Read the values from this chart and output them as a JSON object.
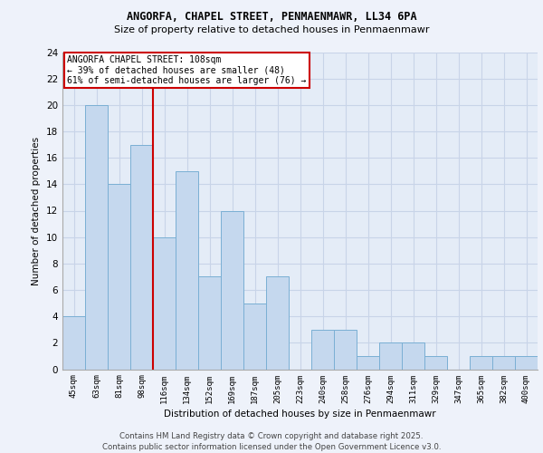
{
  "title_line1": "ANGORFA, CHAPEL STREET, PENMAENMAWR, LL34 6PA",
  "title_line2": "Size of property relative to detached houses in Penmaenmawr",
  "xlabel": "Distribution of detached houses by size in Penmaenmawr",
  "ylabel": "Number of detached properties",
  "footer_line1": "Contains HM Land Registry data © Crown copyright and database right 2025.",
  "footer_line2": "Contains public sector information licensed under the Open Government Licence v3.0.",
  "annotation_line1": "ANGORFA CHAPEL STREET: 108sqm",
  "annotation_line2": "← 39% of detached houses are smaller (48)",
  "annotation_line3": "61% of semi-detached houses are larger (76) →",
  "categories": [
    "45sqm",
    "63sqm",
    "81sqm",
    "98sqm",
    "116sqm",
    "134sqm",
    "152sqm",
    "169sqm",
    "187sqm",
    "205sqm",
    "223sqm",
    "240sqm",
    "258sqm",
    "276sqm",
    "294sqm",
    "311sqm",
    "329sqm",
    "347sqm",
    "365sqm",
    "382sqm",
    "400sqm"
  ],
  "values": [
    4,
    20,
    14,
    17,
    10,
    15,
    7,
    12,
    5,
    7,
    0,
    3,
    3,
    1,
    2,
    2,
    1,
    0,
    1,
    1,
    1
  ],
  "bar_color_normal": "#c5d8ee",
  "bar_color_edge": "#7aafd4",
  "vline_color": "#cc0000",
  "annotation_box_edge": "#cc0000",
  "annotation_box_face": "#ffffff",
  "ylim": [
    0,
    24
  ],
  "yticks": [
    0,
    2,
    4,
    6,
    8,
    10,
    12,
    14,
    16,
    18,
    20,
    22,
    24
  ],
  "grid_color": "#c8d4e8",
  "background_color": "#eef2fa",
  "plot_bg_color": "#e4ecf7",
  "vline_category_index": 3,
  "vline_position": 3.5
}
